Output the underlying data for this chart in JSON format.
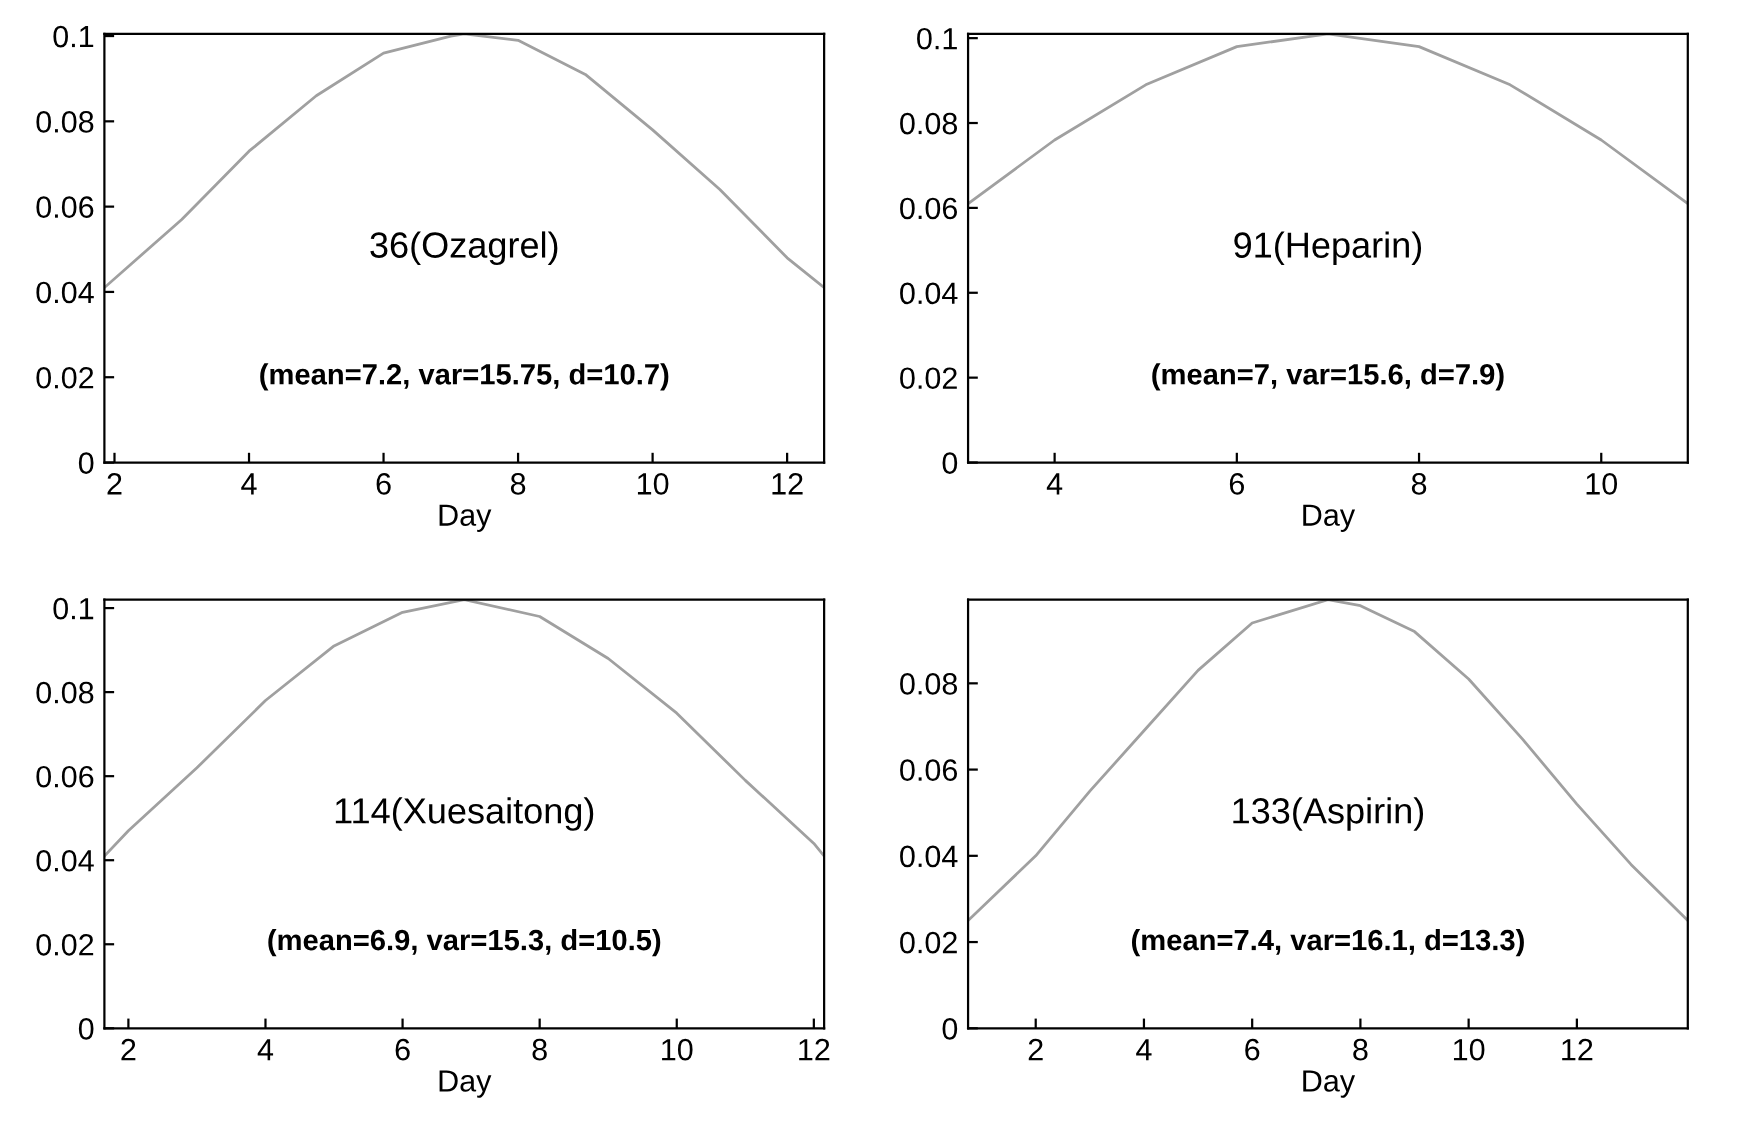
{
  "chart_data": [
    {
      "type": "line",
      "xlabel": "Day",
      "annotations": [
        "36(Ozagrel)",
        "(mean=7.2, var=15.75, d=10.7)"
      ],
      "xlim": [
        1.85,
        12.55
      ],
      "ylim": [
        0,
        0.1005
      ],
      "xticks": [
        2,
        4,
        6,
        8,
        10,
        12
      ],
      "yticks": [
        0,
        0.02,
        0.04,
        0.06,
        0.08,
        0.1
      ],
      "grid": false,
      "legend": false,
      "series": [
        {
          "color": "#a0a0a0",
          "x": [
            1.85,
            3,
            4,
            5,
            6,
            7,
            7.2,
            8,
            9,
            10,
            11,
            12,
            12.55
          ],
          "values": [
            0.041,
            0.057,
            0.073,
            0.086,
            0.096,
            0.1,
            0.1005,
            0.099,
            0.091,
            0.078,
            0.064,
            0.048,
            0.041
          ]
        }
      ]
    },
    {
      "type": "line",
      "xlabel": "Day",
      "annotations": [
        "91(Heparin)",
        "(mean=7, var=15.6, d=7.9)"
      ],
      "xlim": [
        3.05,
        10.95
      ],
      "ylim": [
        0,
        0.101
      ],
      "xticks": [
        4,
        6,
        8,
        10
      ],
      "yticks": [
        0,
        0.02,
        0.04,
        0.06,
        0.08,
        0.1
      ],
      "grid": false,
      "legend": false,
      "series": [
        {
          "color": "#a0a0a0",
          "x": [
            3.05,
            4,
            5,
            6,
            7,
            8,
            9,
            10,
            10.95
          ],
          "values": [
            0.061,
            0.076,
            0.089,
            0.098,
            0.101,
            0.098,
            0.089,
            0.076,
            0.061
          ]
        }
      ]
    },
    {
      "type": "line",
      "xlabel": "Day",
      "annotations": [
        "114(Xuesaitong)",
        "(mean=6.9, var=15.3, d=10.5)"
      ],
      "xlim": [
        1.65,
        12.15
      ],
      "ylim": [
        0,
        0.102
      ],
      "xticks": [
        2,
        4,
        6,
        8,
        10,
        12
      ],
      "yticks": [
        0,
        0.02,
        0.04,
        0.06,
        0.08,
        0.1
      ],
      "grid": false,
      "legend": false,
      "series": [
        {
          "color": "#a0a0a0",
          "x": [
            1.65,
            2,
            3,
            4,
            5,
            6,
            6.9,
            8,
            9,
            10,
            11,
            12,
            12.15
          ],
          "values": [
            0.041,
            0.047,
            0.062,
            0.078,
            0.091,
            0.099,
            0.102,
            0.098,
            0.088,
            0.075,
            0.059,
            0.044,
            0.041
          ]
        }
      ]
    },
    {
      "type": "line",
      "xlabel": "Day",
      "annotations": [
        "133(Aspirin)",
        "(mean=7.4, var=16.1, d=13.3)"
      ],
      "xlim": [
        0.75,
        14.05
      ],
      "ylim": [
        0,
        0.0994
      ],
      "xticks": [
        2,
        4,
        6,
        8,
        10,
        12
      ],
      "yticks": [
        0,
        0.02,
        0.04,
        0.06,
        0.08
      ],
      "grid": false,
      "legend": false,
      "series": [
        {
          "color": "#a0a0a0",
          "x": [
            0.75,
            2,
            3,
            4,
            5,
            6,
            7.4,
            8,
            9,
            10,
            11,
            12,
            13,
            14.05
          ],
          "values": [
            0.025,
            0.04,
            0.055,
            0.069,
            0.083,
            0.094,
            0.0994,
            0.098,
            0.092,
            0.081,
            0.067,
            0.052,
            0.038,
            0.025
          ]
        }
      ]
    }
  ]
}
